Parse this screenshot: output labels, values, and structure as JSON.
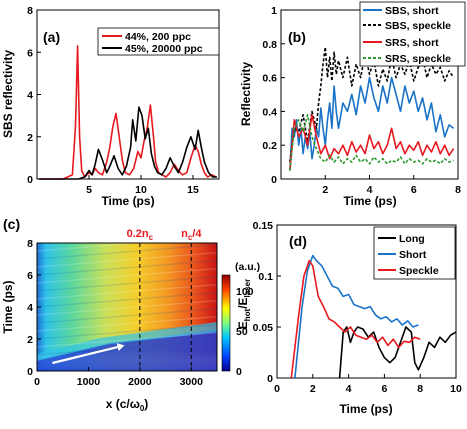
{
  "colors": {
    "red": "#e8191e",
    "black": "#000000",
    "blue": "#1a73c8",
    "green": "#2e9a2e"
  },
  "chart_data": [
    {
      "panel": "(a)",
      "type": "line",
      "xlabel": "Time (ps)",
      "ylabel": "SBS reflectivity",
      "xlim": [
        0,
        17.5
      ],
      "ylim": [
        0,
        8
      ],
      "xticks": [
        5,
        10,
        15
      ],
      "yticks": [
        0,
        2,
        4,
        6,
        8
      ],
      "legend_position": "top-right",
      "series": [
        {
          "name": "44%, 200 ppc",
          "color": "#e8191e",
          "x": [
            0.2,
            2.5,
            3.4,
            3.7,
            3.9,
            4.1,
            4.3,
            4.6,
            5.0,
            5.3,
            5.6,
            5.9,
            6.3,
            6.7,
            7.0,
            7.3,
            7.6,
            7.9,
            8.2,
            8.5,
            8.9,
            9.3,
            9.7,
            10.0,
            10.3,
            10.6,
            10.9,
            11.2,
            11.4,
            11.7,
            12.0,
            12.4,
            12.8,
            13.2,
            13.6,
            14.0,
            14.4,
            14.8,
            15.2,
            15.5,
            15.8,
            16.1,
            16.4,
            16.8,
            17.2
          ],
          "y": [
            0,
            0,
            0.2,
            2.5,
            6.3,
            2.0,
            0.4,
            0.1,
            0.3,
            0.2,
            0.5,
            0.3,
            0.2,
            0.8,
            1.5,
            2.5,
            3.1,
            2.0,
            0.9,
            0.3,
            0.2,
            0.5,
            1.3,
            1.0,
            1.8,
            2.4,
            3.5,
            2.0,
            0.8,
            0.3,
            0.2,
            0.1,
            0.3,
            0.7,
            0.4,
            0.2,
            0.3,
            1.0,
            1.6,
            1.3,
            0.7,
            0.3,
            0.1,
            0.2,
            0.1
          ]
        },
        {
          "name": "45%, 20000 ppc",
          "color": "#000000",
          "x": [
            0.2,
            3.0,
            4.0,
            4.6,
            5.0,
            5.3,
            5.6,
            5.9,
            6.3,
            6.7,
            7.0,
            7.4,
            7.8,
            8.2,
            8.6,
            9.0,
            9.2,
            9.5,
            9.8,
            10.1,
            10.4,
            10.7,
            11.0,
            11.3,
            11.6,
            12.0,
            12.4,
            12.8,
            13.2,
            13.6,
            14.0,
            14.4,
            14.8,
            15.2,
            15.5,
            15.8,
            16.1,
            16.5,
            16.9,
            17.3
          ],
          "y": [
            0,
            0,
            0,
            0.1,
            0.4,
            0.2,
            0.7,
            1.4,
            0.9,
            0.3,
            0.6,
            1.1,
            0.5,
            0.2,
            0.6,
            1.5,
            2.8,
            1.8,
            3.4,
            3.0,
            1.9,
            2.4,
            1.2,
            0.6,
            0.3,
            0.2,
            0.5,
            1.0,
            0.6,
            0.3,
            0.8,
            1.5,
            2.0,
            1.4,
            2.3,
            1.5,
            0.8,
            0.3,
            0.1,
            0.1
          ]
        }
      ]
    },
    {
      "panel": "(b)",
      "type": "line",
      "xlabel": "Time (ps)",
      "ylabel": "Reflectivity",
      "xlim": [
        0,
        8
      ],
      "ylim": [
        0,
        1
      ],
      "xticks": [
        2,
        4,
        6,
        8
      ],
      "yticks": [
        0,
        0.2,
        0.4,
        0.6,
        0.8,
        1
      ],
      "legend_position": "top-right",
      "series": [
        {
          "name": "SBS, short",
          "color": "#1a73c8",
          "dash": "solid",
          "x": [
            0.4,
            0.5,
            0.6,
            0.7,
            0.8,
            0.9,
            1.0,
            1.1,
            1.2,
            1.3,
            1.4,
            1.5,
            1.6,
            1.7,
            1.8,
            1.9,
            2.0,
            2.1,
            2.2,
            2.3,
            2.4,
            2.5,
            2.6,
            2.8,
            3.0,
            3.2,
            3.4,
            3.6,
            3.8,
            4.0,
            4.2,
            4.4,
            4.6,
            4.8,
            5.0,
            5.2,
            5.4,
            5.6,
            5.8,
            6.0,
            6.2,
            6.4,
            6.6,
            6.8,
            7.0,
            7.2,
            7.4,
            7.6,
            7.8
          ],
          "y": [
            0.05,
            0.3,
            0.25,
            0.35,
            0.2,
            0.3,
            0.15,
            0.25,
            0.18,
            0.28,
            0.12,
            0.2,
            0.3,
            0.25,
            0.42,
            0.3,
            0.2,
            0.35,
            0.45,
            0.3,
            0.55,
            0.4,
            0.3,
            0.45,
            0.4,
            0.5,
            0.38,
            0.55,
            0.45,
            0.6,
            0.48,
            0.4,
            0.55,
            0.45,
            0.6,
            0.5,
            0.4,
            0.55,
            0.45,
            0.52,
            0.4,
            0.48,
            0.35,
            0.45,
            0.28,
            0.38,
            0.25,
            0.32,
            0.3
          ]
        },
        {
          "name": "SBS, speckle",
          "color": "#000000",
          "dash": "dashed",
          "x": [
            0.4,
            0.6,
            0.8,
            1.0,
            1.2,
            1.4,
            1.6,
            1.7,
            1.8,
            1.9,
            2.0,
            2.1,
            2.2,
            2.3,
            2.4,
            2.5,
            2.6,
            2.8,
            3.0,
            3.2,
            3.4,
            3.6,
            3.8,
            4.0,
            4.2,
            4.4,
            4.6,
            4.8,
            5.0,
            5.2,
            5.4,
            5.6,
            5.8,
            6.0,
            6.2,
            6.4,
            6.6,
            6.8,
            7.0,
            7.2,
            7.4,
            7.6,
            7.8
          ],
          "y": [
            0.1,
            0.3,
            0.28,
            0.38,
            0.22,
            0.4,
            0.3,
            0.45,
            0.55,
            0.68,
            0.78,
            0.6,
            0.72,
            0.58,
            0.75,
            0.62,
            0.7,
            0.6,
            0.72,
            0.55,
            0.68,
            0.6,
            0.74,
            0.62,
            0.7,
            0.55,
            0.65,
            0.58,
            0.72,
            0.6,
            0.68,
            0.62,
            0.7,
            0.58,
            0.66,
            0.72,
            0.6,
            0.68,
            0.62,
            0.66,
            0.58,
            0.64,
            0.6
          ]
        },
        {
          "name": "SRS, short",
          "color": "#e8191e",
          "dash": "solid",
          "x": [
            0.4,
            0.6,
            0.8,
            1.0,
            1.2,
            1.4,
            1.6,
            1.8,
            2.0,
            2.2,
            2.4,
            2.6,
            2.8,
            3.0,
            3.2,
            3.4,
            3.6,
            3.8,
            4.0,
            4.2,
            4.4,
            4.6,
            4.8,
            5.0,
            5.2,
            5.4,
            5.6,
            5.8,
            6.0,
            6.2,
            6.4,
            6.6,
            6.8,
            7.0,
            7.2,
            7.4,
            7.6,
            7.8
          ],
          "y": [
            0.05,
            0.35,
            0.25,
            0.3,
            0.2,
            0.38,
            0.25,
            0.15,
            0.2,
            0.12,
            0.18,
            0.15,
            0.2,
            0.14,
            0.22,
            0.16,
            0.2,
            0.15,
            0.26,
            0.18,
            0.22,
            0.15,
            0.2,
            0.3,
            0.18,
            0.22,
            0.15,
            0.2,
            0.17,
            0.22,
            0.14,
            0.2,
            0.16,
            0.22,
            0.15,
            0.2,
            0.14,
            0.18
          ]
        },
        {
          "name": "SRS, speckle",
          "color": "#2e9a2e",
          "dash": "dashed",
          "x": [
            0.4,
            0.6,
            0.8,
            1.0,
            1.2,
            1.4,
            1.6,
            1.8,
            2.0,
            2.2,
            2.4,
            2.6,
            2.8,
            3.0,
            3.2,
            3.4,
            3.6,
            3.8,
            4.0,
            4.2,
            4.4,
            4.6,
            4.8,
            5.0,
            5.2,
            5.4,
            5.6,
            5.8,
            6.0,
            6.2,
            6.4,
            6.6,
            6.8,
            7.0,
            7.2,
            7.4,
            7.6,
            7.8
          ],
          "y": [
            0.05,
            0.3,
            0.35,
            0.28,
            0.38,
            0.25,
            0.18,
            0.12,
            0.1,
            0.14,
            0.1,
            0.13,
            0.09,
            0.12,
            0.1,
            0.14,
            0.1,
            0.12,
            0.09,
            0.13,
            0.1,
            0.12,
            0.09,
            0.11,
            0.1,
            0.13,
            0.09,
            0.12,
            0.1,
            0.11,
            0.09,
            0.12,
            0.1,
            0.11,
            0.09,
            0.12,
            0.1,
            0.11
          ]
        }
      ]
    },
    {
      "panel": "(c)",
      "type": "heatmap",
      "xlabel": "x (c/ω",
      "xlabel_sub": "0",
      "xlabel_end": ")",
      "ylabel": "Time (ps)",
      "xlim": [
        0,
        3500
      ],
      "ylim": [
        0,
        8
      ],
      "xticks": [
        0,
        1000,
        2000,
        3000
      ],
      "yticks": [
        0,
        2,
        4,
        6,
        8
      ],
      "colorbar": {
        "label": "(a.u.)",
        "range": [
          0,
          120
        ],
        "ticks": [
          0,
          50,
          100
        ]
      },
      "markers": [
        {
          "x": 2000,
          "label": "0.2n",
          "sub": "c",
          "suffix": "",
          "color": "#e8191e"
        },
        {
          "x": 3000,
          "label": "n",
          "sub": "c",
          "suffix": "/4",
          "color": "#e8191e"
        }
      ],
      "arrow": {
        "from": [
          300,
          0.5
        ],
        "to": [
          1700,
          1.6
        ],
        "color": "#ffffff"
      }
    },
    {
      "panel": "(d)",
      "type": "line",
      "xlabel": "Time (ps)",
      "ylabel": "E",
      "ylabel_sub1": "hot",
      "ylabel_mid": "/E",
      "ylabel_sub2": "laser",
      "xlim": [
        0,
        10
      ],
      "ylim": [
        0,
        0.15
      ],
      "xticks": [
        0,
        2,
        4,
        6,
        8,
        10
      ],
      "yticks": [
        0,
        0.05,
        0.1,
        0.15
      ],
      "legend_position": "top-right",
      "series": [
        {
          "name": "Long",
          "color": "#000000",
          "x": [
            3.5,
            3.7,
            3.9,
            4.1,
            4.3,
            4.5,
            4.8,
            5.1,
            5.4,
            5.7,
            6.0,
            6.3,
            6.6,
            6.9,
            7.2,
            7.5,
            7.7,
            7.9,
            8.2,
            8.5,
            8.8,
            9.1,
            9.4,
            9.7,
            10.0
          ],
          "y": [
            0,
            0.045,
            0.05,
            0.035,
            0.045,
            0.05,
            0.048,
            0.04,
            0.045,
            0.03,
            0.02,
            0.015,
            0.02,
            0.035,
            0.05,
            0.045,
            0.015,
            0.008,
            0.02,
            0.035,
            0.03,
            0.04,
            0.035,
            0.042,
            0.045
          ]
        },
        {
          "name": "Short",
          "color": "#1a73c8",
          "x": [
            1.0,
            1.4,
            1.7,
            2.0,
            2.2,
            2.5,
            2.8,
            3.1,
            3.4,
            3.7,
            4.0,
            4.3,
            4.6,
            4.9,
            5.2,
            5.5,
            5.8,
            6.1,
            6.4,
            6.7,
            7.0,
            7.3,
            7.6,
            7.9
          ],
          "y": [
            0,
            0.07,
            0.105,
            0.12,
            0.115,
            0.11,
            0.1,
            0.09,
            0.088,
            0.08,
            0.082,
            0.072,
            0.07,
            0.068,
            0.07,
            0.062,
            0.058,
            0.06,
            0.055,
            0.058,
            0.052,
            0.056,
            0.05,
            0.052
          ]
        },
        {
          "name": "Speckle",
          "color": "#e8191e",
          "x": [
            0.8,
            1.2,
            1.5,
            1.8,
            2.0,
            2.3,
            2.6,
            2.9,
            3.2,
            3.5,
            3.8,
            4.1,
            4.4,
            4.7,
            5.0,
            5.3,
            5.6,
            5.9,
            6.2,
            6.5,
            6.8,
            7.1,
            7.4,
            7.7,
            8.0
          ],
          "y": [
            0,
            0.06,
            0.1,
            0.115,
            0.11,
            0.08,
            0.07,
            0.058,
            0.055,
            0.05,
            0.045,
            0.05,
            0.042,
            0.04,
            0.038,
            0.042,
            0.035,
            0.04,
            0.032,
            0.038,
            0.03,
            0.036,
            0.035,
            0.04,
            0.038
          ]
        }
      ]
    }
  ]
}
